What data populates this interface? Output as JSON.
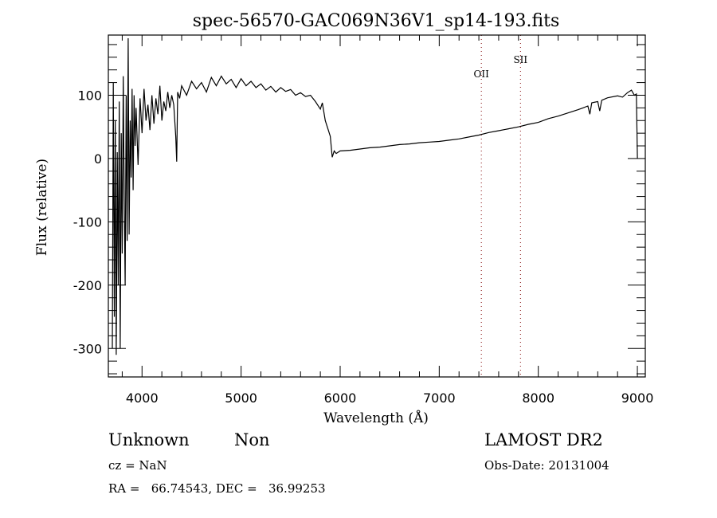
{
  "chart_data": {
    "type": "line",
    "title": "spec-56570-GAC069N36V1_sp14-193.fits",
    "xlabel": "Wavelength (Å)",
    "ylabel": "Flux (relative)",
    "xlim": [
      3660,
      9080
    ],
    "ylim": [
      -345,
      195
    ],
    "xticks": [
      4000,
      5000,
      6000,
      7000,
      8000,
      9000
    ],
    "yticks": [
      -300,
      -200,
      -100,
      0,
      100
    ],
    "grid": false,
    "line_markers": [
      {
        "label": "OII",
        "x": 7425
      },
      {
        "label": "SII",
        "x": 7820
      }
    ],
    "series": [
      {
        "name": "flux",
        "points": [
          [
            3700,
            -300
          ],
          [
            3710,
            120
          ],
          [
            3720,
            -250
          ],
          [
            3730,
            60
          ],
          [
            3740,
            -310
          ],
          [
            3750,
            10
          ],
          [
            3760,
            -200
          ],
          [
            3770,
            90
          ],
          [
            3780,
            -300
          ],
          [
            3790,
            40
          ],
          [
            3800,
            -150
          ],
          [
            3810,
            130
          ],
          [
            3820,
            -60
          ],
          [
            3830,
            -200
          ],
          [
            3840,
            100
          ],
          [
            3850,
            -130
          ],
          [
            3860,
            190
          ],
          [
            3870,
            -120
          ],
          [
            3880,
            60
          ],
          [
            3890,
            -30
          ],
          [
            3900,
            110
          ],
          [
            3910,
            -50
          ],
          [
            3920,
            100
          ],
          [
            3930,
            20
          ],
          [
            3940,
            80
          ],
          [
            3960,
            -10
          ],
          [
            3980,
            95
          ],
          [
            4000,
            40
          ],
          [
            4020,
            110
          ],
          [
            4040,
            60
          ],
          [
            4060,
            85
          ],
          [
            4080,
            45
          ],
          [
            4100,
            100
          ],
          [
            4120,
            55
          ],
          [
            4140,
            95
          ],
          [
            4160,
            70
          ],
          [
            4180,
            115
          ],
          [
            4200,
            60
          ],
          [
            4220,
            90
          ],
          [
            4240,
            75
          ],
          [
            4260,
            105
          ],
          [
            4280,
            80
          ],
          [
            4300,
            100
          ],
          [
            4320,
            85
          ],
          [
            4340,
            35
          ],
          [
            4350,
            -5
          ],
          [
            4360,
            105
          ],
          [
            4380,
            95
          ],
          [
            4400,
            115
          ],
          [
            4450,
            100
          ],
          [
            4500,
            122
          ],
          [
            4550,
            110
          ],
          [
            4600,
            120
          ],
          [
            4650,
            105
          ],
          [
            4700,
            128
          ],
          [
            4750,
            115
          ],
          [
            4800,
            130
          ],
          [
            4850,
            118
          ],
          [
            4900,
            125
          ],
          [
            4950,
            112
          ],
          [
            5000,
            126
          ],
          [
            5050,
            115
          ],
          [
            5100,
            122
          ],
          [
            5150,
            112
          ],
          [
            5200,
            118
          ],
          [
            5250,
            108
          ],
          [
            5300,
            114
          ],
          [
            5350,
            105
          ],
          [
            5400,
            112
          ],
          [
            5450,
            106
          ],
          [
            5500,
            109
          ],
          [
            5550,
            100
          ],
          [
            5600,
            104
          ],
          [
            5650,
            98
          ],
          [
            5700,
            100
          ],
          [
            5750,
            90
          ],
          [
            5800,
            78
          ],
          [
            5820,
            88
          ],
          [
            5850,
            60
          ],
          [
            5880,
            45
          ],
          [
            5900,
            35
          ],
          [
            5920,
            2
          ],
          [
            5940,
            12
          ],
          [
            5960,
            8
          ],
          [
            6000,
            12
          ],
          [
            6100,
            13
          ],
          [
            6200,
            15
          ],
          [
            6300,
            17
          ],
          [
            6400,
            18
          ],
          [
            6500,
            20
          ],
          [
            6600,
            22
          ],
          [
            6700,
            23
          ],
          [
            6800,
            25
          ],
          [
            6900,
            26
          ],
          [
            7000,
            27
          ],
          [
            7100,
            29
          ],
          [
            7200,
            31
          ],
          [
            7300,
            34
          ],
          [
            7400,
            37
          ],
          [
            7500,
            41
          ],
          [
            7600,
            44
          ],
          [
            7700,
            47
          ],
          [
            7800,
            50
          ],
          [
            7900,
            54
          ],
          [
            8000,
            57
          ],
          [
            8100,
            63
          ],
          [
            8200,
            67
          ],
          [
            8300,
            72
          ],
          [
            8400,
            77
          ],
          [
            8450,
            80
          ],
          [
            8500,
            83
          ],
          [
            8520,
            70
          ],
          [
            8540,
            88
          ],
          [
            8600,
            90
          ],
          [
            8620,
            75
          ],
          [
            8640,
            92
          ],
          [
            8700,
            96
          ],
          [
            8800,
            99
          ],
          [
            8850,
            97
          ],
          [
            8900,
            104
          ],
          [
            8940,
            108
          ],
          [
            8970,
            100
          ],
          [
            8990,
            102
          ],
          [
            9000,
            0
          ]
        ]
      }
    ]
  },
  "info": {
    "class": "Unknown",
    "subclass": "Non",
    "cz": "cz = NaN",
    "radec": "RA =   66.74543, DEC =   36.99253",
    "survey": "LAMOST DR2",
    "obsdate": "Obs-Date: 20131004"
  }
}
